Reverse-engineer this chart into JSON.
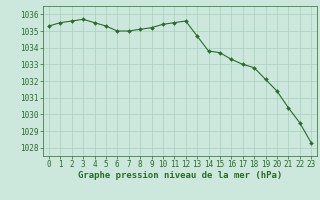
{
  "x": [
    0,
    1,
    2,
    3,
    4,
    5,
    6,
    7,
    8,
    9,
    10,
    11,
    12,
    13,
    14,
    15,
    16,
    17,
    18,
    19,
    20,
    21,
    22,
    23
  ],
  "y": [
    1035.3,
    1035.5,
    1035.6,
    1035.7,
    1035.5,
    1035.3,
    1035.0,
    1035.0,
    1035.1,
    1035.2,
    1035.4,
    1035.5,
    1035.6,
    1034.7,
    1033.8,
    1033.7,
    1033.3,
    1033.0,
    1032.8,
    1032.1,
    1031.4,
    1030.4,
    1029.5,
    1028.3
  ],
  "line_color": "#2d6a2d",
  "marker_color": "#2d6a2d",
  "bg_color": "#cce8dc",
  "grid_color": "#aacfbf",
  "xlabel": "Graphe pression niveau de la mer (hPa)",
  "ylim": [
    1027.5,
    1036.5
  ],
  "xlim": [
    -0.5,
    23.5
  ],
  "yticks": [
    1028,
    1029,
    1030,
    1031,
    1032,
    1033,
    1034,
    1035,
    1036
  ],
  "xticks": [
    0,
    1,
    2,
    3,
    4,
    5,
    6,
    7,
    8,
    9,
    10,
    11,
    12,
    13,
    14,
    15,
    16,
    17,
    18,
    19,
    20,
    21,
    22,
    23
  ],
  "tick_fontsize": 5.5,
  "xlabel_fontsize": 6.5,
  "line_width": 0.8,
  "marker_size": 2.0
}
